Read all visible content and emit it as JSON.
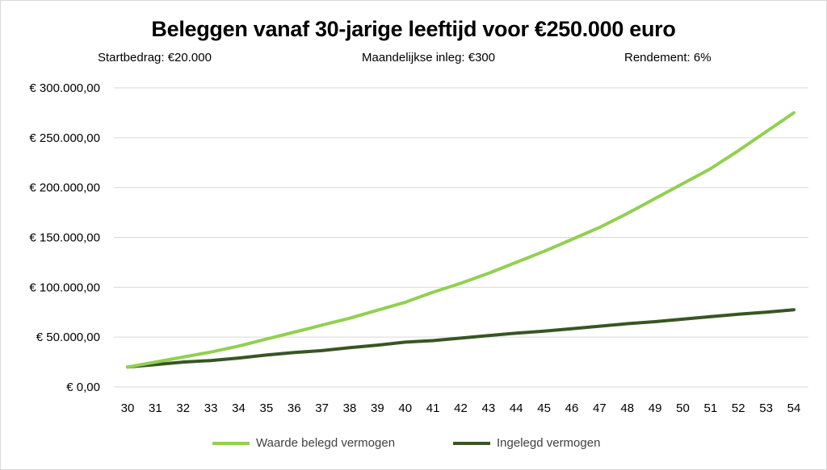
{
  "chart_data": {
    "type": "line",
    "title": "Beleggen vanaf 30-jarige leeftijd voor €250.000 euro",
    "subtitles": {
      "start": "Startbedrag: €20.000",
      "inleg": "Maandelijkse inleg: €300",
      "rendement": "Rendement: 6%"
    },
    "x": [
      30,
      31,
      32,
      33,
      34,
      35,
      36,
      37,
      38,
      39,
      40,
      41,
      42,
      43,
      44,
      45,
      46,
      47,
      48,
      49,
      50,
      51,
      52,
      53,
      54
    ],
    "ylim": [
      0,
      300000
    ],
    "yticks": [
      0,
      50000,
      100000,
      150000,
      200000,
      250000,
      300000
    ],
    "ytick_labels": [
      "€ 0,00",
      "€ 50.000,00",
      "€ 100.000,00",
      "€ 150.000,00",
      "€ 200.000,00",
      "€ 250.000,00",
      "€ 300.000,00"
    ],
    "grid": true,
    "legend_position": "bottom",
    "series": [
      {
        "name": "Waarde belegd vermogen",
        "color": "#92d050",
        "values": [
          20000,
          25000,
          30000,
          35000,
          41000,
          48000,
          55000,
          62000,
          69000,
          77000,
          85000,
          95000,
          104000,
          114000,
          125000,
          136000,
          148000,
          160000,
          174000,
          189000,
          204000,
          219000,
          237000,
          256000,
          275000
        ]
      },
      {
        "name": "Ingelegd vermogen",
        "color": "#375623",
        "values": [
          20000,
          22500,
          25000,
          26500,
          29000,
          32000,
          34500,
          36500,
          39500,
          42000,
          45000,
          46500,
          49000,
          51500,
          54000,
          56000,
          58500,
          61000,
          63500,
          65500,
          68000,
          70500,
          73000,
          75000,
          77500
        ]
      }
    ]
  }
}
